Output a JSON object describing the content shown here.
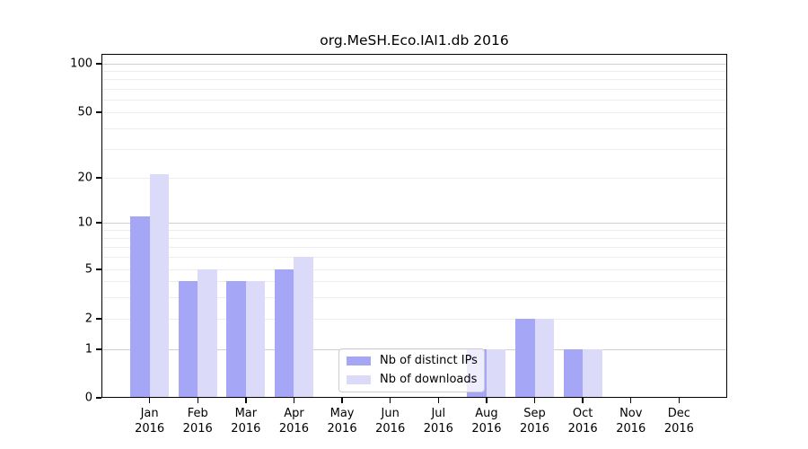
{
  "chart_data": {
    "type": "bar",
    "title": "org.MeSH.Eco.IAI1.db 2016",
    "categories": [
      "Jan 2016",
      "Feb 2016",
      "Mar 2016",
      "Apr 2016",
      "May 2016",
      "Jun 2016",
      "Jul 2016",
      "Aug 2016",
      "Sep 2016",
      "Oct 2016",
      "Nov 2016",
      "Dec 2016"
    ],
    "series": [
      {
        "name": "Nb of distinct IPs",
        "color": "#a6a6f7",
        "values": [
          11,
          4,
          4,
          5,
          0,
          0,
          0,
          1,
          2,
          1,
          0,
          0
        ]
      },
      {
        "name": "Nb of downloads",
        "color": "#dbdbf9",
        "values": [
          21,
          5,
          4,
          6,
          0,
          0,
          0,
          1,
          2,
          1,
          0,
          0
        ]
      }
    ],
    "yticks": [
      0,
      1,
      2,
      5,
      10,
      20,
      50,
      100
    ],
    "ylim": [
      0,
      100
    ],
    "yscale": "symlog",
    "grid": "horizontal, major dark at 1/10/100, minor light at 2-9 and 20-90 mantissas",
    "legend_position": "lower center inside plot",
    "xlabel": "",
    "ylabel": ""
  },
  "colors": {
    "bar_distinct_ips": "#a6a6f7",
    "bar_downloads": "#dbdbf9",
    "grid_major": "#cfcfcf",
    "grid_minor": "#ededed",
    "axis": "#000000",
    "legend_border": "#cccccc",
    "background": "#ffffff"
  }
}
